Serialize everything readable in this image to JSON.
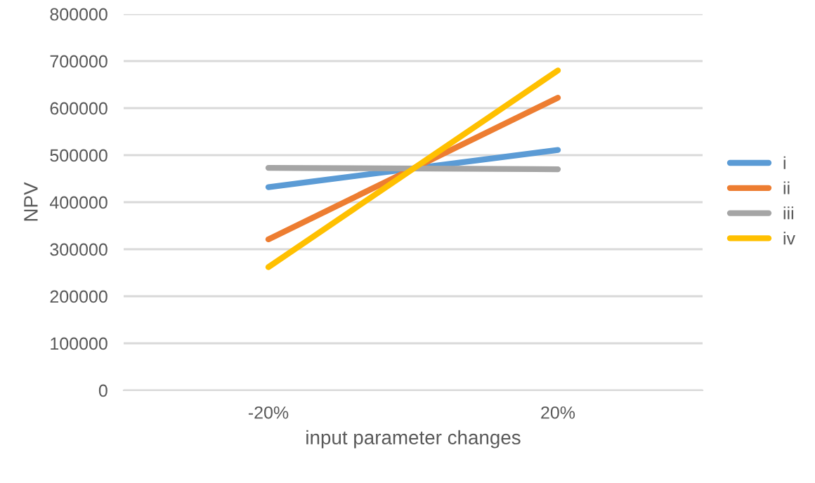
{
  "chart_data": {
    "type": "line",
    "xlabel": "input parameter changes",
    "ylabel": "NPV",
    "categories": [
      "-20%",
      "20%"
    ],
    "series": [
      {
        "name": "i",
        "color": "#5b9bd5",
        "values": [
          432000,
          511000
        ]
      },
      {
        "name": "ii",
        "color": "#ed7d31",
        "values": [
          321000,
          622000
        ]
      },
      {
        "name": "iii",
        "color": "#a5a5a5",
        "values": [
          473000,
          470000
        ]
      },
      {
        "name": "iv",
        "color": "#ffc000",
        "values": [
          262000,
          680000
        ]
      }
    ],
    "ylim": [
      0,
      800000
    ],
    "yticks": [
      0,
      100000,
      200000,
      300000,
      400000,
      500000,
      600000,
      700000,
      800000
    ],
    "grid": "y",
    "legend": "right",
    "marker": "none",
    "line_style": "solid"
  }
}
